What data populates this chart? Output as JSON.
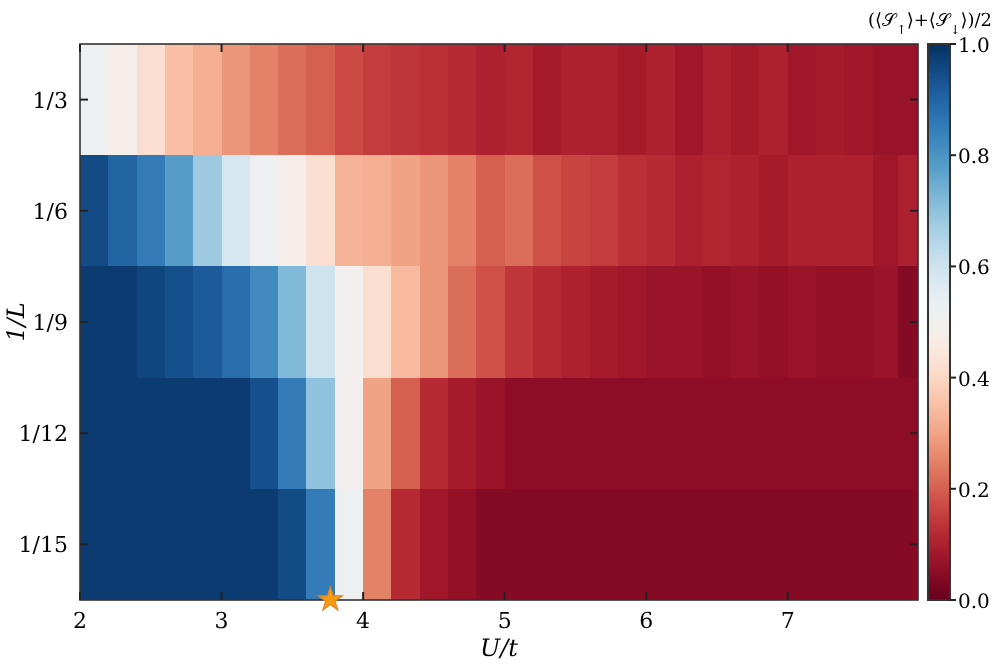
{
  "chart_data": {
    "type": "heatmap",
    "xlabel": "U/t",
    "ylabel": "1/L",
    "clabel": "(⟨𝒮$_{↑}$⟩+⟨𝒮$_{↓}$⟩)/2",
    "x": [
      2.1,
      2.3,
      2.5,
      2.7,
      2.9,
      3.1,
      3.3,
      3.5,
      3.7,
      3.9,
      4.1,
      4.3,
      4.5,
      4.7,
      4.9,
      5.1,
      5.3,
      5.5,
      5.7,
      5.9,
      6.1,
      6.3,
      6.5,
      6.7,
      6.9,
      7.1,
      7.3,
      7.5,
      7.7,
      7.86
    ],
    "y_categories": [
      "1/3",
      "1/6",
      "1/9",
      "1/12",
      "1/15"
    ],
    "cells": [
      [
        0.52,
        0.48,
        0.42,
        0.35,
        0.32,
        0.28,
        0.25,
        0.22,
        0.2,
        0.17,
        0.15,
        0.14,
        0.13,
        0.12,
        0.1,
        0.11,
        0.09,
        0.1,
        0.1,
        0.09,
        0.1,
        0.08,
        0.1,
        0.09,
        0.1,
        0.08,
        0.09,
        0.08,
        0.07,
        0.07
      ],
      [
        0.95,
        0.9,
        0.85,
        0.78,
        0.68,
        0.58,
        0.52,
        0.48,
        0.42,
        0.33,
        0.32,
        0.3,
        0.28,
        0.25,
        0.2,
        0.22,
        0.18,
        0.16,
        0.15,
        0.13,
        0.12,
        0.1,
        0.11,
        0.1,
        0.09,
        0.1,
        0.1,
        0.1,
        0.08,
        0.1
      ],
      [
        0.98,
        0.98,
        0.96,
        0.94,
        0.92,
        0.88,
        0.82,
        0.72,
        0.6,
        0.5,
        0.42,
        0.34,
        0.28,
        0.22,
        0.18,
        0.14,
        0.12,
        0.1,
        0.09,
        0.08,
        0.07,
        0.07,
        0.06,
        0.07,
        0.06,
        0.07,
        0.06,
        0.06,
        0.07,
        0.04
      ],
      [
        0.98,
        0.98,
        0.98,
        0.98,
        0.98,
        0.98,
        0.94,
        0.85,
        0.7,
        0.5,
        0.3,
        0.2,
        0.12,
        0.09,
        0.07,
        0.05,
        0.05,
        0.05,
        0.05,
        0.05,
        0.05,
        0.05,
        0.05,
        0.05,
        0.05,
        0.05,
        0.05,
        0.05,
        0.05,
        0.05
      ],
      [
        0.98,
        0.98,
        0.98,
        0.98,
        0.98,
        0.98,
        0.98,
        0.95,
        0.85,
        0.52,
        0.25,
        0.12,
        0.08,
        0.06,
        0.04,
        0.04,
        0.04,
        0.04,
        0.04,
        0.04,
        0.04,
        0.04,
        0.04,
        0.04,
        0.04,
        0.04,
        0.04,
        0.04,
        0.04,
        0.04
      ]
    ],
    "xlim": [
      2,
      7.92
    ],
    "xticks": [
      2,
      3,
      4,
      5,
      6,
      7
    ],
    "clim": [
      0,
      1
    ],
    "cticks": [
      {
        "value": 0,
        "label": "0.0"
      },
      {
        "value": 0.2,
        "label": "0.2"
      },
      {
        "value": 0.4,
        "label": "0.4"
      },
      {
        "value": 0.6,
        "label": "0.6"
      },
      {
        "value": 0.8,
        "label": "0.8"
      },
      {
        "value": 1,
        "label": "1.0"
      }
    ],
    "annotations": [
      "★"
    ]
  }
}
